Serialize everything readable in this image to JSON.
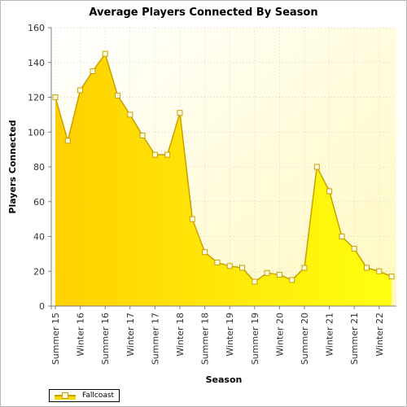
{
  "chart_data": {
    "type": "area",
    "title": "Average Players Connected By Season",
    "xlabel": "Season",
    "ylabel": "Players Connected",
    "ylim": [
      0,
      160
    ],
    "yticks": [
      0,
      20,
      40,
      60,
      80,
      100,
      120,
      140,
      160
    ],
    "x_tick_labels": [
      "Summer 15",
      "Winter 16",
      "Summer 16",
      "Winter 17",
      "Summer 17",
      "Winter 18",
      "Summer 18",
      "Winter 19",
      "Summer 19",
      "Winter 20",
      "Summer 20",
      "Winter 21",
      "Summer 21",
      "Winter 22"
    ],
    "grid": true,
    "legend": "bottom-left",
    "series": [
      {
        "name": "Fallcoast",
        "color": "#ffd700",
        "line_color": "#c8a000",
        "values": [
          120,
          95,
          124,
          135,
          145,
          121,
          110,
          98,
          87,
          87,
          111,
          50,
          31,
          25,
          23,
          22,
          14,
          19,
          18,
          15,
          22,
          80,
          66,
          40,
          33,
          22,
          20,
          17
        ]
      }
    ]
  }
}
